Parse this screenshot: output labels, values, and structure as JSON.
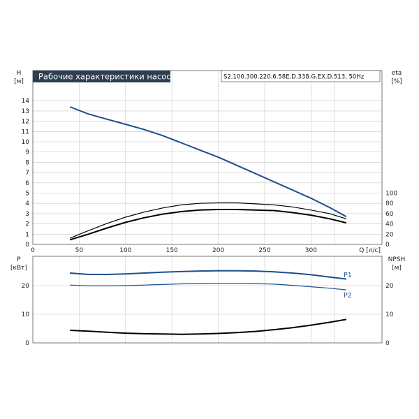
{
  "title": "Рабочие характеристики насоса",
  "model": "S2.100.300.220.6.58E.D.338.G.EX.D.513, 50Hz",
  "colors": {
    "title_bg": "#2c3e50",
    "head_curve": "#1f4e8c",
    "p1_curve": "#1f4e8c",
    "p2_curve": "#1f4e8c",
    "eta_curve": "#000000",
    "npsh_curve": "#000000",
    "grid": "#c8c8c8"
  },
  "chart_data": [
    {
      "type": "line",
      "xlabel": "Q [л/с]",
      "ylabel_left": "H",
      "ylabel_left_unit": "[м]",
      "ylabel_right": "eta",
      "ylabel_right_unit": "[%]",
      "xlim": [
        0,
        350
      ],
      "ylim": [
        0,
        15
      ],
      "xticks": [
        0,
        50,
        100,
        150,
        200,
        250,
        300
      ],
      "yticks": [
        0,
        1,
        2,
        3,
        4,
        5,
        6,
        7,
        8,
        9,
        10,
        11,
        12,
        13,
        14
      ],
      "right_lim": [
        0,
        150
      ],
      "right_ticks": [
        0,
        20,
        40,
        60,
        80,
        100
      ],
      "grid": true,
      "series": [
        {
          "key": "H",
          "axis": "left",
          "x": [
            40,
            60,
            80,
            100,
            120,
            140,
            160,
            180,
            200,
            220,
            240,
            260,
            280,
            300,
            320,
            338
          ],
          "y": [
            13.4,
            12.7,
            12.2,
            11.7,
            11.2,
            10.6,
            9.9,
            9.2,
            8.5,
            7.7,
            6.9,
            6.1,
            5.3,
            4.5,
            3.6,
            2.7
          ]
        },
        {
          "key": "eta_pump",
          "axis": "right",
          "x": [
            40,
            60,
            80,
            100,
            120,
            140,
            160,
            180,
            200,
            220,
            240,
            260,
            280,
            300,
            320,
            338
          ],
          "y": [
            12,
            27,
            41,
            53,
            63,
            71,
            77,
            80,
            81,
            81,
            79,
            77,
            73,
            67,
            60,
            50
          ]
        },
        {
          "key": "eta_total",
          "axis": "right",
          "x": [
            40,
            60,
            80,
            100,
            120,
            140,
            160,
            180,
            200,
            220,
            240,
            260,
            280,
            300,
            320,
            338
          ],
          "y": [
            9,
            20,
            32,
            43,
            52,
            59,
            64,
            67,
            68,
            68,
            67,
            66,
            62,
            57,
            50,
            42
          ]
        }
      ]
    },
    {
      "type": "line",
      "xlabel": "",
      "ylabel_left": "P",
      "ylabel_left_unit": "[кВт]",
      "ylabel_right": "NPSH",
      "ylabel_right_unit": "[м]",
      "xlim": [
        0,
        350
      ],
      "ylim": [
        0,
        30
      ],
      "yticks": [
        0,
        10,
        20
      ],
      "right_lim": [
        0,
        30
      ],
      "right_ticks": [
        0,
        10,
        20
      ],
      "grid": true,
      "series": [
        {
          "name": "P1",
          "axis": "left",
          "x": [
            40,
            60,
            80,
            100,
            120,
            140,
            160,
            180,
            200,
            220,
            240,
            260,
            280,
            300,
            320,
            338
          ],
          "y": [
            24.4,
            23.9,
            23.9,
            24.1,
            24.4,
            24.7,
            24.9,
            25.1,
            25.2,
            25.2,
            25.1,
            24.8,
            24.4,
            23.8,
            23.0,
            22.3
          ]
        },
        {
          "name": "P2",
          "axis": "left",
          "x": [
            40,
            60,
            80,
            100,
            120,
            140,
            160,
            180,
            200,
            220,
            240,
            260,
            280,
            300,
            320,
            338
          ],
          "y": [
            20.2,
            19.9,
            19.9,
            20.0,
            20.2,
            20.4,
            20.6,
            20.7,
            20.8,
            20.8,
            20.7,
            20.5,
            20.1,
            19.6,
            19.1,
            18.5
          ]
        },
        {
          "key": "NPSH",
          "axis": "right",
          "x": [
            40,
            60,
            80,
            100,
            120,
            140,
            160,
            180,
            200,
            220,
            240,
            260,
            280,
            300,
            320,
            338
          ],
          "y": [
            4.4,
            4.1,
            3.7,
            3.4,
            3.2,
            3.1,
            3.0,
            3.1,
            3.3,
            3.6,
            4.0,
            4.6,
            5.3,
            6.2,
            7.2,
            8.2
          ]
        }
      ]
    }
  ]
}
